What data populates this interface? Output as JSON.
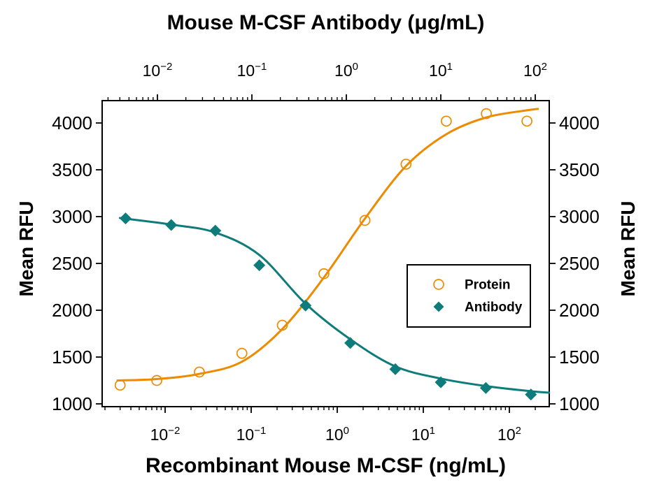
{
  "figure": {
    "title_top": "Mouse M-CSF Antibody (μg/mL)",
    "xlabel_bottom": "Recombinant Mouse M-CSF (ng/mL)",
    "ylabel_left": "Mean RFU",
    "ylabel_right": "Mean RFU"
  },
  "chart_data": {
    "type": "scatter",
    "title": "Mouse M-CSF Antibody (μg/mL)",
    "x_axis_top": {
      "label": "Mouse M-CSF Antibody (μg/mL)",
      "scale": "log",
      "tick_exponents": [
        -2,
        -1,
        0,
        1,
        2
      ],
      "range_approx": [
        0.0026,
        140
      ]
    },
    "x_axis_bottom": {
      "label": "Recombinant Mouse M-CSF (ng/mL)",
      "scale": "log",
      "tick_exponents": [
        -2,
        -1,
        0,
        1,
        2
      ],
      "range_approx": [
        0.0019,
        290
      ]
    },
    "y_axis": {
      "label": "Mean RFU",
      "ticks": [
        1000,
        1500,
        2000,
        2500,
        3000,
        3500,
        4000
      ],
      "range": [
        970,
        4230
      ],
      "sides": [
        "left",
        "right"
      ]
    },
    "grid": false,
    "legend_position": "middle-right",
    "series": [
      {
        "name": "Protein",
        "x_axis": "bottom",
        "marker": "open-circle",
        "color": "#ED8B00",
        "x": [
          0.003,
          0.008,
          0.025,
          0.078,
          0.23,
          0.7,
          2.1,
          6.3,
          18.5,
          54,
          160
        ],
        "y": [
          1200,
          1250,
          1340,
          1540,
          1840,
          2390,
          2960,
          3560,
          4020,
          4100,
          4020
        ],
        "fit_x": [
          0.0028,
          0.008,
          0.025,
          0.078,
          0.23,
          0.7,
          2.1,
          6.3,
          18.5,
          54,
          160,
          215
        ],
        "fit_y": [
          1250,
          1265,
          1320,
          1450,
          1800,
          2350,
          2980,
          3540,
          3880,
          4060,
          4135,
          4150
        ]
      },
      {
        "name": "Antibody",
        "x_axis": "top",
        "marker": "filled-diamond",
        "color": "#0E7C7B",
        "x": [
          0.0046,
          0.014,
          0.041,
          0.12,
          0.37,
          1.1,
          3.3,
          10,
          30,
          90
        ],
        "y": [
          2980,
          2910,
          2850,
          2480,
          2050,
          1650,
          1370,
          1230,
          1170,
          1100
        ],
        "fit_x": [
          0.004,
          0.014,
          0.041,
          0.12,
          0.37,
          1.1,
          3.3,
          10,
          30,
          90,
          140
        ],
        "fit_y": [
          2985,
          2915,
          2830,
          2590,
          2070,
          1690,
          1400,
          1270,
          1190,
          1135,
          1120
        ]
      }
    ]
  },
  "legend": {
    "items": [
      {
        "label": "Protein",
        "marker": "open-circle",
        "color": "#ED8B00"
      },
      {
        "label": "Antibody",
        "marker": "filled-diamond",
        "color": "#0E7C7B"
      }
    ]
  },
  "colors": {
    "protein_orange": "#ED8B00",
    "antibody_teal": "#0E7C7B",
    "axis_black": "#000000",
    "background": "#FFFFFF"
  }
}
